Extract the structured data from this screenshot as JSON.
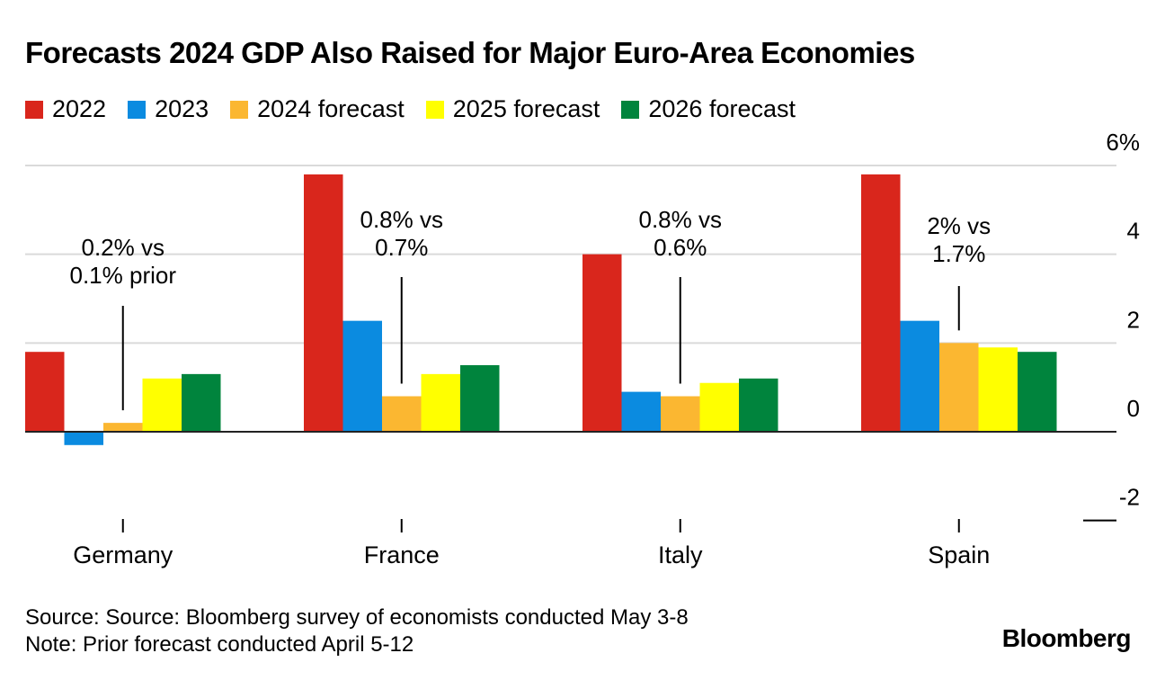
{
  "title": "Forecasts 2024 GDP Also Raised for Major Euro-Area Economies",
  "legend": [
    {
      "label": "2022",
      "color": "#d9261c"
    },
    {
      "label": "2023",
      "color": "#0b8be0"
    },
    {
      "label": "2024 forecast",
      "color": "#fbb731"
    },
    {
      "label": "2025 forecast",
      "color": "#ffff00"
    },
    {
      "label": "2026 forecast",
      "color": "#00843d"
    }
  ],
  "chart_data": {
    "type": "bar",
    "categories": [
      "Germany",
      "France",
      "Italy",
      "Spain"
    ],
    "series": [
      {
        "name": "2022",
        "color": "#d9261c",
        "values": [
          1.8,
          5.8,
          4.0,
          5.8
        ]
      },
      {
        "name": "2023",
        "color": "#0b8be0",
        "values": [
          -0.3,
          2.5,
          0.9,
          2.5
        ]
      },
      {
        "name": "2024 forecast",
        "color": "#fbb731",
        "values": [
          0.2,
          0.8,
          0.8,
          2.0
        ]
      },
      {
        "name": "2025 forecast",
        "color": "#ffff00",
        "values": [
          1.2,
          1.3,
          1.1,
          1.9
        ]
      },
      {
        "name": "2026 forecast",
        "color": "#00843d",
        "values": [
          1.3,
          1.5,
          1.2,
          1.8
        ]
      }
    ],
    "ylim": [
      -2,
      6
    ],
    "yticks": [
      "-2",
      "0",
      "2",
      "4",
      "6%"
    ],
    "ytick_values": [
      -2,
      0,
      2,
      4,
      6
    ],
    "annotations": [
      {
        "category": "Germany",
        "lines": [
          "0.2% vs",
          "0.1% prior"
        ]
      },
      {
        "category": "France",
        "lines": [
          "0.8% vs",
          "0.7%"
        ]
      },
      {
        "category": "Italy",
        "lines": [
          "0.8% vs",
          "0.6%"
        ]
      },
      {
        "category": "Spain",
        "lines": [
          "2% vs",
          "1.7%"
        ]
      }
    ],
    "xlabel": "",
    "ylabel": ""
  },
  "footer": {
    "source": "Source: Source: Bloomberg survey of economists conducted May 3-8",
    "note": "Note: Prior forecast conducted April 5-12"
  },
  "brand": "Bloomberg"
}
